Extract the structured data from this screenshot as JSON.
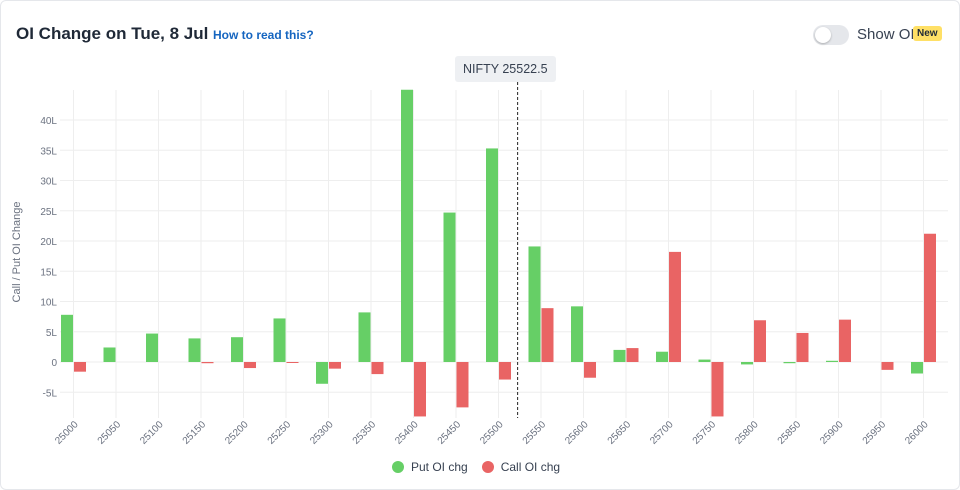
{
  "header": {
    "title": "OI Change on Tue, 8 Jul",
    "help_link": "How to read this?",
    "toggle_label": "Show OI",
    "toggle_on": false,
    "new_badge": "New"
  },
  "spot": {
    "label": "NIFTY 25522.5",
    "value": 25522.5
  },
  "colors": {
    "put": "#66cf66",
    "call": "#e96464",
    "grid": "#eeeeee",
    "axis_text": "#6b7280"
  },
  "chart_data": {
    "type": "bar",
    "ylabel": "Call / Put OI Change",
    "ylim": [
      -9,
      45
    ],
    "yticks": [
      {
        "value": 40,
        "label": "40L"
      },
      {
        "value": 35,
        "label": "35L"
      },
      {
        "value": 30,
        "label": "30L"
      },
      {
        "value": 25,
        "label": "25L"
      },
      {
        "value": 20,
        "label": "20L"
      },
      {
        "value": 15,
        "label": "15L"
      },
      {
        "value": 10,
        "label": "10L"
      },
      {
        "value": 5,
        "label": "5L"
      },
      {
        "value": 0,
        "label": "0"
      },
      {
        "value": -5,
        "label": "-5L"
      }
    ],
    "categories": [
      "25000",
      "25050",
      "25100",
      "25150",
      "25200",
      "25250",
      "25300",
      "25350",
      "25400",
      "25450",
      "25500",
      "25550",
      "25600",
      "25650",
      "25700",
      "25750",
      "25800",
      "25850",
      "25900",
      "25950",
      "26000"
    ],
    "series": [
      {
        "name": "Put OI chg",
        "values": [
          7.8,
          2.4,
          4.7,
          3.9,
          4.1,
          7.2,
          -3.6,
          8.2,
          45,
          24.7,
          35.3,
          19.1,
          9.2,
          2.0,
          1.7,
          0.4,
          -0.4,
          -0.2,
          0.2,
          0,
          -1.9
        ]
      },
      {
        "name": "Call OI chg",
        "values": [
          -1.6,
          0,
          0,
          -0.2,
          -1.0,
          -0.1,
          -1.1,
          -2.0,
          -9,
          -7.5,
          -2.9,
          8.9,
          -2.6,
          2.3,
          18.2,
          -9,
          6.9,
          4.8,
          7.0,
          -1.3,
          21.2
        ]
      }
    ],
    "grid": true,
    "legend_position": "bottom-center"
  }
}
